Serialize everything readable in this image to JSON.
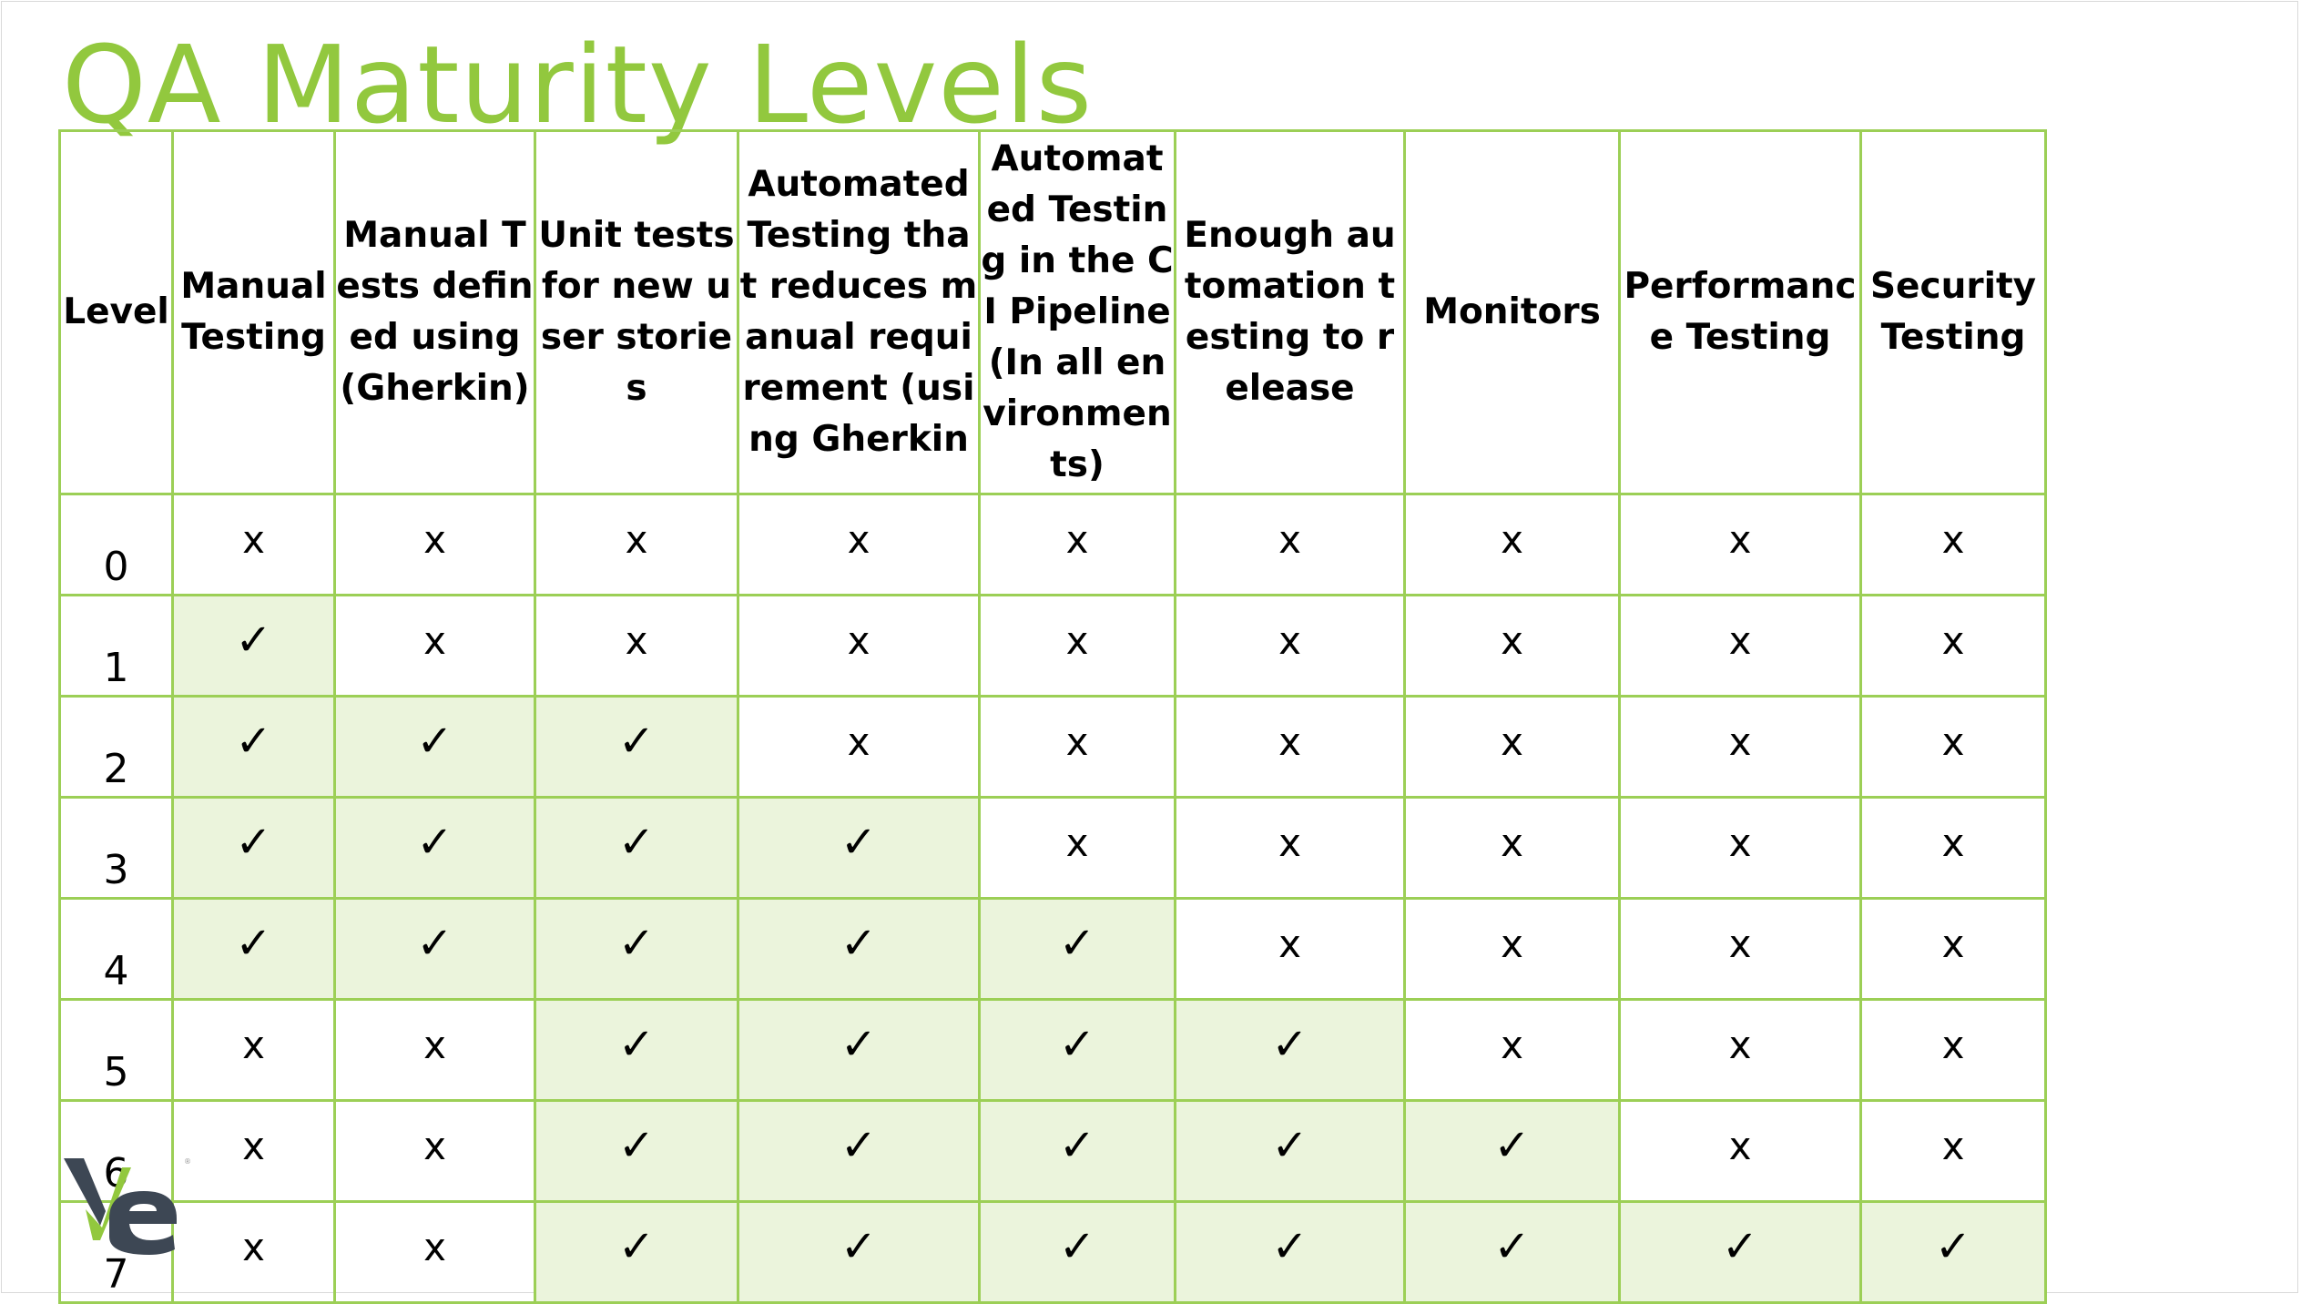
{
  "title": "QA Maturity Levels",
  "colors": {
    "accent": "#92c83e",
    "grid_border": "#9ccf56",
    "checked_fill": "#ebf4dc",
    "logo_dark": "#3d4754"
  },
  "table": {
    "headers": [
      "Level",
      "Manual Testing",
      "Manual Tests defined using (Gherkin)",
      "Unit tests for new user stories",
      "Automated Testing that reduces manual requirement (using Gherkin",
      "Automated Testing in  the CI Pipeline (In all environments)",
      "Enough automation testing to release",
      "Monitors",
      "Performance Testing",
      "Security Testing"
    ],
    "rows": [
      {
        "level": "0",
        "cells": [
          "x",
          "x",
          "x",
          "x",
          "x",
          "x",
          "x",
          "x",
          "x"
        ]
      },
      {
        "level": "1",
        "cells": [
          "✓",
          "x",
          "x",
          "x",
          "x",
          "x",
          "x",
          "x",
          "x"
        ]
      },
      {
        "level": "2",
        "cells": [
          "✓",
          "✓",
          "✓",
          "x",
          "x",
          "x",
          "x",
          "x",
          "x"
        ]
      },
      {
        "level": "3",
        "cells": [
          "✓",
          "✓",
          "✓",
          "✓",
          "x",
          "x",
          "x",
          "x",
          "x"
        ]
      },
      {
        "level": "4",
        "cells": [
          "✓",
          "✓",
          "✓",
          "✓",
          "✓",
          "x",
          "x",
          "x",
          "x"
        ]
      },
      {
        "level": "5",
        "cells": [
          "x",
          "x",
          "✓",
          "✓",
          "✓",
          "✓",
          "x",
          "x",
          "x"
        ]
      },
      {
        "level": "6",
        "cells": [
          "x",
          "x",
          "✓",
          "✓",
          "✓",
          "✓",
          "✓",
          "x",
          "x"
        ]
      },
      {
        "level": "7",
        "cells": [
          "x",
          "x",
          "✓",
          "✓",
          "✓",
          "✓",
          "✓",
          "✓",
          "✓"
        ]
      }
    ]
  },
  "logo": {
    "icon": "ve-logo-icon",
    "text": "Ve"
  }
}
